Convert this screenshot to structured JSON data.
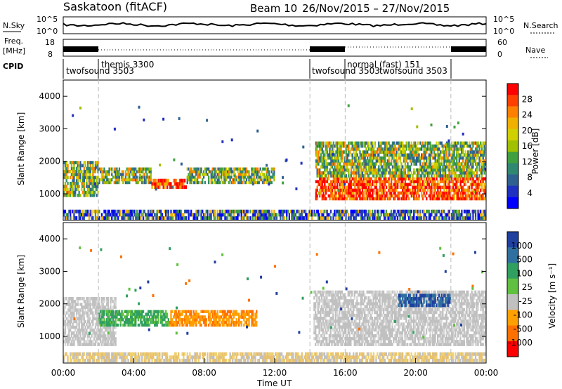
{
  "header": {
    "title": "Saskatoon (fitACF)",
    "beam": "Beam 10",
    "dates": "26/Nov/2015 – 27/Nov/2015"
  },
  "top_panels": {
    "nsky_label": "N.Sky",
    "nsky_ticks": [
      "10^5",
      "10^0"
    ],
    "nsearch_label": "N.Search",
    "freq_label_line1": "Freq.",
    "freq_label_line2": "[MHz]",
    "freq_ticks": [
      "18",
      "8"
    ],
    "nave_ticks": [
      "60",
      "0"
    ],
    "nave_label": "Nave",
    "cpid_label": "CPID",
    "cpid_segments": [
      {
        "text": "twofsound 3503",
        "start_hour": 0
      },
      {
        "text": "themis 3300",
        "start_hour": 2
      },
      {
        "text": "twofsound 3503",
        "start_hour": 14
      },
      {
        "text": "normal (fast) 151",
        "start_hour": 16
      },
      {
        "text": "twofsound 3503",
        "start_hour": 16.3
      }
    ]
  },
  "axes": {
    "ylabel": "Slant Range [km]",
    "yticks": [
      "4000",
      "3000",
      "2000",
      "1000"
    ],
    "xticks": [
      "00:00",
      "04:00",
      "08:00",
      "12:00",
      "16:00",
      "20:00",
      "00:00"
    ],
    "xlabel": "Time UT"
  },
  "colorbars": {
    "power": {
      "label": "Power [dB]",
      "ticks": [
        "28",
        "24",
        "20",
        "16",
        "12",
        "8",
        "4"
      ],
      "colors": [
        "#ff0000",
        "#ff4000",
        "#ff8000",
        "#f0b000",
        "#d0d000",
        "#a0c000",
        "#40a040",
        "#308870",
        "#306090",
        "#2030c0",
        "#0000ff"
      ]
    },
    "velocity": {
      "label": "Velocity [m s⁻¹]",
      "ticks": [
        "1000",
        "500",
        "100",
        "25",
        "-25",
        "-100",
        "-500",
        "-1000"
      ],
      "colors": [
        "#2040a0",
        "#3070a0",
        "#30a060",
        "#60c040",
        "#c0c0c0",
        "#ffa000",
        "#ff7000",
        "#ff0000"
      ]
    }
  },
  "chart_data": [
    {
      "type": "heatmap",
      "title": "Power",
      "x_range_hours": [
        0,
        24
      ],
      "y_range_km": [
        180,
        4500
      ],
      "bands": [
        {
          "t0": 0,
          "t1": 2,
          "r0": 900,
          "r1": 2000,
          "level": "mid"
        },
        {
          "t0": 2,
          "t1": 5,
          "r0": 1300,
          "r1": 1800,
          "level": "mid"
        },
        {
          "t0": 5,
          "t1": 7,
          "r0": 1150,
          "r1": 1450,
          "level": "high"
        },
        {
          "t0": 7,
          "t1": 12,
          "r0": 1300,
          "r1": 1800,
          "level": "mid"
        },
        {
          "t0": 14.3,
          "t1": 24,
          "r0": 800,
          "r1": 1500,
          "level": "high"
        },
        {
          "t0": 14.3,
          "t1": 24,
          "r0": 1500,
          "r1": 2600,
          "level": "mid"
        },
        {
          "t0": 0,
          "t1": 24,
          "r0": 200,
          "r1": 500,
          "level": "low"
        }
      ],
      "grid": false
    },
    {
      "type": "heatmap",
      "title": "Velocity",
      "x_range_hours": [
        0,
        24
      ],
      "y_range_km": [
        180,
        4500
      ],
      "bands": [
        {
          "t0": 0,
          "t1": 3,
          "r0": 700,
          "r1": 2200,
          "level": "ground"
        },
        {
          "t0": 2,
          "t1": 6,
          "r0": 1300,
          "r1": 1800,
          "level": "pos_small"
        },
        {
          "t0": 6,
          "t1": 11,
          "r0": 1300,
          "r1": 1800,
          "level": "neg"
        },
        {
          "t0": 14.2,
          "t1": 24,
          "r0": 700,
          "r1": 2400,
          "level": "ground"
        },
        {
          "t0": 19,
          "t1": 22,
          "r0": 1900,
          "r1": 2300,
          "level": "pos_large"
        },
        {
          "t0": 0,
          "t1": 24,
          "r0": 200,
          "r1": 500,
          "level": "neg_small"
        }
      ],
      "grid": false
    }
  ]
}
